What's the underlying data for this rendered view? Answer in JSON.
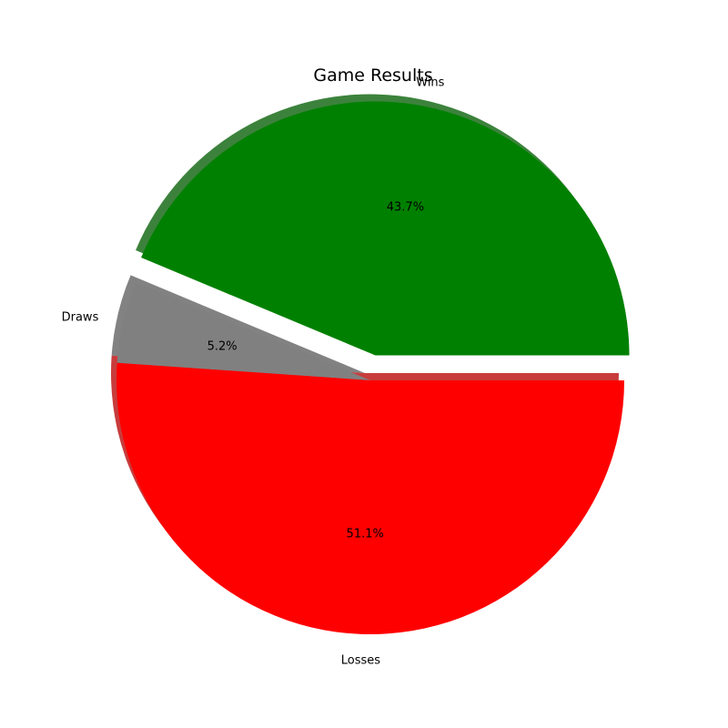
{
  "chart_data": {
    "type": "pie",
    "title": "Game Results",
    "labels": [
      "Wins",
      "Draws",
      "Losses"
    ],
    "values": [
      43.7,
      5.2,
      51.1
    ],
    "value_labels": [
      "43.7%",
      "5.2%",
      "51.1%"
    ],
    "colors": [
      "#008000",
      "#808080",
      "#ff0000"
    ],
    "exploded": [
      "Wins"
    ],
    "start_angle_deg": 0,
    "direction": "counterclockwise",
    "shadow": true
  }
}
